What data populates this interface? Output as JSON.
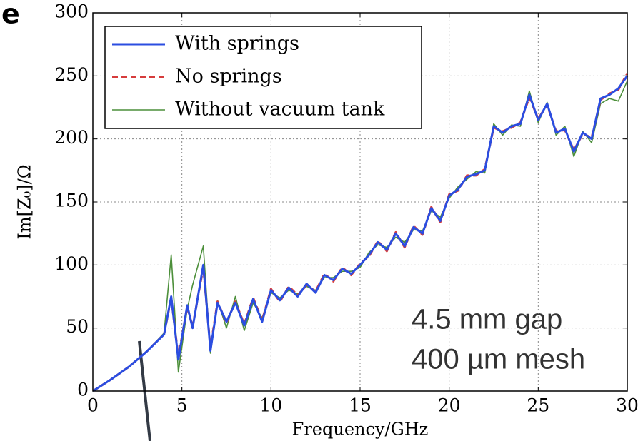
{
  "chart_data": {
    "type": "line",
    "panel_label": "e",
    "xlabel": "Frequency/GHz",
    "ylabel": "Im[Z₀]/Ω",
    "annotations": [
      "4.5 mm gap",
      "400 µm mesh"
    ],
    "x": [
      0,
      1,
      2,
      3,
      4,
      4.4,
      4.8,
      5.3,
      5.6,
      6.2,
      6.6,
      7,
      7.5,
      8,
      8.5,
      9,
      9.5,
      10,
      10.5,
      11,
      11.5,
      12,
      12.5,
      13,
      13.5,
      14,
      14.5,
      15,
      15.5,
      16,
      16.5,
      17,
      17.5,
      18,
      18.5,
      19,
      19.5,
      20,
      20.5,
      21,
      21.5,
      22,
      22.5,
      23,
      23.5,
      24,
      24.5,
      25,
      25.5,
      26,
      26.5,
      27,
      27.5,
      28,
      28.5,
      29,
      29.5,
      30
    ],
    "series": [
      {
        "name": "With springs",
        "color": "#2b4de0",
        "linestyle": "solid",
        "values": [
          0,
          9,
          19,
          31,
          45,
          75,
          25,
          68,
          50,
          100,
          32,
          70,
          55,
          70,
          52,
          73,
          55,
          80,
          72,
          82,
          75,
          85,
          78,
          92,
          88,
          97,
          93,
          100,
          108,
          118,
          112,
          125,
          115,
          130,
          125,
          145,
          135,
          155,
          160,
          170,
          172,
          175,
          210,
          205,
          210,
          212,
          235,
          215,
          228,
          205,
          208,
          190,
          205,
          200,
          232,
          235,
          240,
          250
        ]
      },
      {
        "name": "No springs",
        "color": "#d63c3c",
        "linestyle": "dashed",
        "values": [
          0,
          9,
          19,
          31,
          45,
          74,
          27,
          67,
          51,
          98,
          34,
          71,
          54,
          71,
          53,
          74,
          56,
          81,
          71,
          83,
          76,
          84,
          79,
          93,
          87,
          98,
          92,
          101,
          107,
          119,
          111,
          126,
          114,
          131,
          124,
          146,
          134,
          156,
          159,
          171,
          171,
          176,
          209,
          206,
          209,
          213,
          233,
          216,
          227,
          206,
          207,
          191,
          204,
          201,
          231,
          236,
          239,
          252
        ]
      },
      {
        "name": "Without vacuum tank",
        "color": "#4c8f3a",
        "linestyle": "thin",
        "values": [
          0,
          9,
          19,
          31,
          46,
          108,
          15,
          65,
          84,
          115,
          30,
          72,
          50,
          75,
          48,
          70,
          58,
          78,
          74,
          80,
          77,
          83,
          80,
          90,
          90,
          95,
          95,
          98,
          110,
          116,
          114,
          122,
          118,
          128,
          127,
          143,
          138,
          153,
          162,
          168,
          174,
          173,
          212,
          203,
          211,
          210,
          238,
          213,
          229,
          203,
          210,
          186,
          206,
          197,
          228,
          232,
          230,
          246
        ]
      }
    ],
    "xlim": [
      0,
      30
    ],
    "xticks": [
      0,
      5,
      10,
      15,
      20,
      25,
      30
    ],
    "ylim": [
      0,
      300
    ],
    "yticks": [
      0,
      50,
      100,
      150,
      200,
      250,
      300
    ],
    "grid": true,
    "legend": "upper left"
  }
}
